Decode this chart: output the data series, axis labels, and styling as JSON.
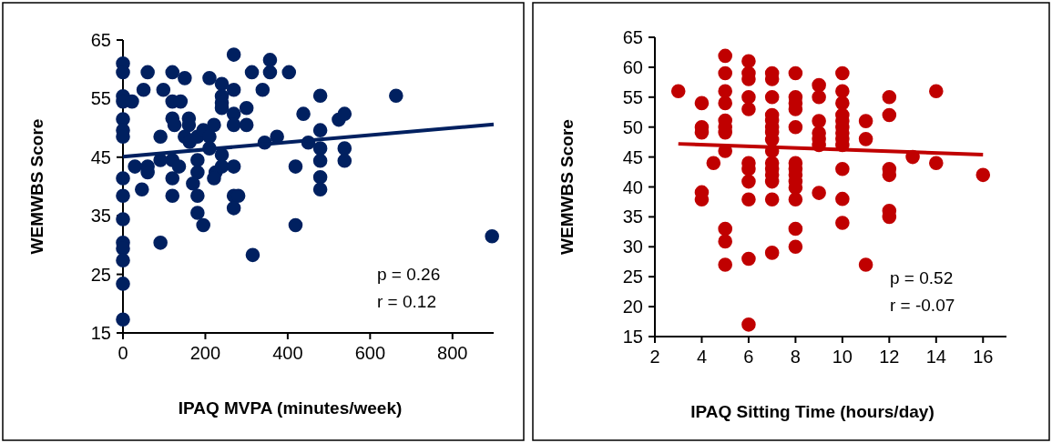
{
  "chart_data": [
    {
      "type": "scatter",
      "xlabel": "IPAQ MVPA (minutes/week)",
      "ylabel": "WEMWBS Score",
      "xlim": [
        0,
        900
      ],
      "xticks": [
        0,
        200,
        400,
        600,
        800
      ],
      "ylim": [
        15,
        65
      ],
      "yticks": [
        15,
        25,
        35,
        45,
        55,
        65
      ],
      "annotations": [
        "p = 0.26",
        "r = 0.12"
      ],
      "series": [
        {
          "marker": "circle",
          "color": "#002060",
          "x": [
            0,
            0,
            0,
            0,
            0,
            0,
            0,
            0,
            0,
            0,
            0,
            0,
            0,
            0,
            0,
            60,
            120,
            150,
            210,
            240,
            269,
            313,
            357,
            357,
            403,
            50,
            98,
            240,
            240,
            240,
            269,
            339,
            479,
            22,
            120,
            140,
            300,
            269,
            438,
            120,
            125,
            160,
            160,
            221,
            269,
            300,
            91,
            150,
            162,
            181,
            195,
            210,
            344,
            374,
            450,
            210,
            240,
            29,
            60,
            60,
            91,
            120,
            136,
            181,
            181,
            240,
            225,
            221,
            269,
            419,
            120,
            46,
            170,
            120,
            181,
            269,
            280,
            269,
            181,
            195,
            419,
            91,
            315,
            663,
            896,
            524,
            538,
            479,
            479,
            479,
            479,
            479,
            538,
            538
          ],
          "values": [
            61,
            59.5,
            55.4,
            54.5,
            51.5,
            49.6,
            48.5,
            41.4,
            38.4,
            34.4,
            30.4,
            29.4,
            27.4,
            23.4,
            17.3,
            59.5,
            59.5,
            58.5,
            58.5,
            57.5,
            62.5,
            59.5,
            61.6,
            59.5,
            59.5,
            56.5,
            56.5,
            55.4,
            54.3,
            53.4,
            56.5,
            56.5,
            55.5,
            54.5,
            54.5,
            54.5,
            53.4,
            52.4,
            52.4,
            51.6,
            50.5,
            51.6,
            50.5,
            50.5,
            50.5,
            50.5,
            48.5,
            48.5,
            47.6,
            48.5,
            49.6,
            48.5,
            47.5,
            48.5,
            47.5,
            46.5,
            45.4,
            43.4,
            43.4,
            42.4,
            44.5,
            44.5,
            43.4,
            44.5,
            42.4,
            43.4,
            42.4,
            41.4,
            43.4,
            43.4,
            41.4,
            39.5,
            40.5,
            38.4,
            38.4,
            38.4,
            38.4,
            36.3,
            35.5,
            33.4,
            33.4,
            30.4,
            28.3,
            55.5,
            31.5,
            51.4,
            52.4,
            49.6,
            46.5,
            44.4,
            41.6,
            39.5,
            46.5,
            44.4
          ]
        },
        {
          "type": "line",
          "color": "#002060",
          "x": [
            0,
            900
          ],
          "values": [
            45.1,
            50.6
          ]
        }
      ]
    },
    {
      "type": "scatter",
      "xlabel": "IPAQ Sitting Time (hours/day)",
      "ylabel": "WEMWBS Score",
      "xlim": [
        2,
        17
      ],
      "xticks": [
        2,
        4,
        6,
        8,
        10,
        12,
        14,
        16
      ],
      "ylim": [
        15,
        65
      ],
      "yticks": [
        15,
        20,
        25,
        30,
        35,
        40,
        45,
        50,
        55,
        60,
        65
      ],
      "annotations": [
        "p = 0.52",
        "r = -0.07"
      ],
      "series": [
        {
          "marker": "circle",
          "color": "#c00000",
          "x": [
            3,
            4,
            4,
            4,
            4,
            4,
            4.5,
            5,
            5,
            5,
            5,
            5,
            5,
            5,
            5,
            5,
            5,
            5,
            6,
            6,
            6,
            6,
            6,
            6,
            6,
            6,
            6,
            6,
            6,
            7,
            7,
            7,
            7,
            7,
            7,
            7,
            7,
            7,
            7,
            7,
            7,
            7,
            7,
            7,
            8,
            8,
            8,
            8,
            8,
            8,
            8,
            8,
            8,
            8,
            8,
            8,
            8,
            9,
            9,
            9,
            9,
            9,
            9,
            9,
            10,
            10,
            10,
            10,
            10,
            10,
            10,
            10,
            10,
            10,
            10,
            10,
            11,
            11,
            11,
            12,
            12,
            12,
            12,
            12,
            12,
            13,
            14,
            14,
            16
          ],
          "values": [
            56,
            54,
            50,
            49.1,
            39.1,
            37.9,
            44,
            61.9,
            59,
            56,
            54,
            51.1,
            50,
            49.1,
            46,
            33,
            30.9,
            27,
            61,
            59,
            58,
            55,
            53,
            44,
            43,
            40.9,
            37.9,
            28,
            17,
            59,
            58,
            55,
            52,
            51.1,
            50,
            49.1,
            47.9,
            46,
            44,
            43,
            42,
            40.9,
            37.9,
            29,
            59,
            55,
            54,
            53,
            50,
            44,
            43,
            42,
            40.9,
            39.9,
            37.9,
            33,
            30,
            57,
            55,
            51,
            49,
            48,
            47,
            39,
            59,
            56,
            54,
            52,
            51,
            50,
            49,
            48,
            47,
            43,
            38,
            34,
            51,
            48,
            27,
            55,
            52,
            43,
            42,
            36,
            35,
            45,
            56,
            44,
            42
          ]
        },
        {
          "type": "line",
          "color": "#c00000",
          "x": [
            3,
            16
          ],
          "values": [
            47.2,
            45.4
          ]
        }
      ]
    }
  ]
}
